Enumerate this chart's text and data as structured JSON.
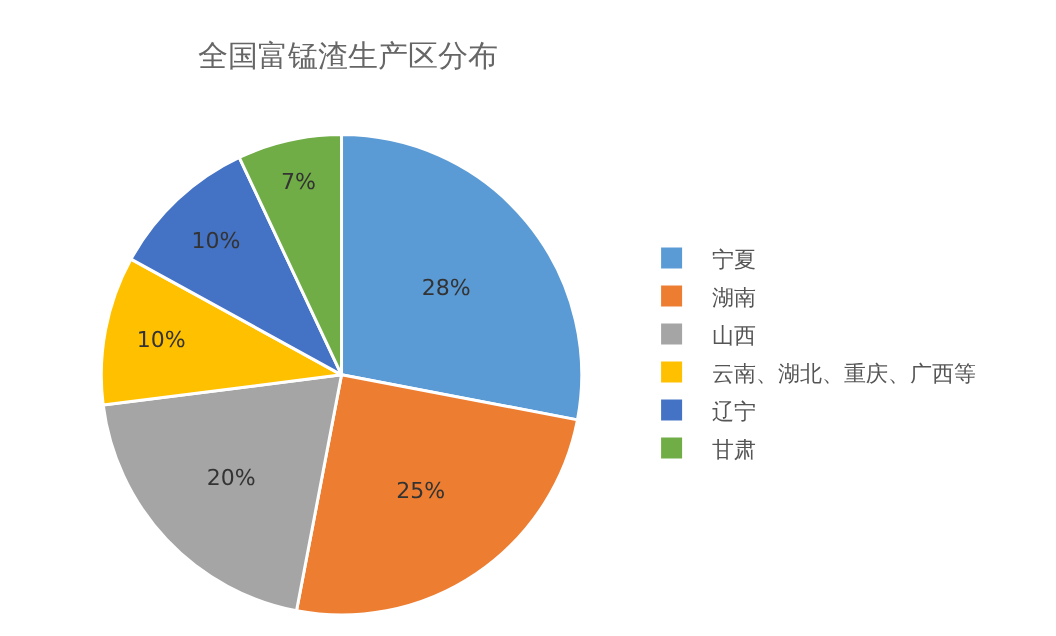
{
  "chart_data": {
    "type": "pie",
    "title": "全国富锰渣生产区分布",
    "categories": [
      "宁夏",
      "湖南",
      "山西",
      "云南、湖北、重庆、广西等",
      "辽宁",
      "甘肃"
    ],
    "values": [
      28,
      25,
      20,
      10,
      10,
      7
    ],
    "colors": [
      "#5b9bd5",
      "#ed7d31",
      "#a5a5a5",
      "#ffc000",
      "#4472c4",
      "#70ad47"
    ],
    "value_labels": [
      "28%",
      "25%",
      "20%",
      "10%",
      "10%",
      "7%"
    ],
    "legend": "right"
  }
}
